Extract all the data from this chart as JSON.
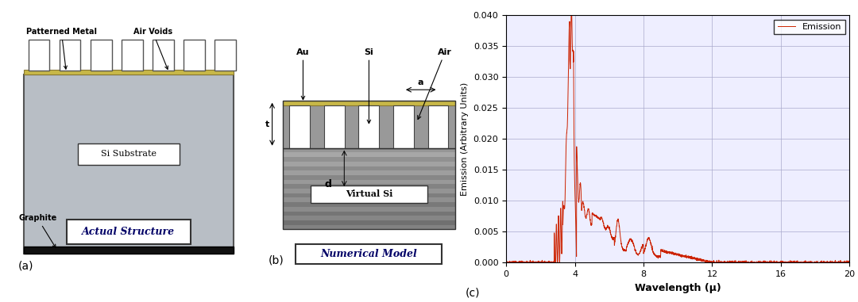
{
  "fig_width": 10.8,
  "fig_height": 3.81,
  "bg_color": "#ffffff",
  "panel_a": {
    "label": "(a)",
    "substrate_color": "#b8bec5",
    "substrate_border": "#555555",
    "metal_color": "#c8b848",
    "pillar_fill": "#ffffff",
    "pillar_border": "#555555",
    "graphite_color": "#111111",
    "box_label1": "Si Substrate",
    "box_label2": "Actual Structure",
    "annot_patterned": "Patterned Metal",
    "annot_airvoids": "Air Voids",
    "annot_graphite": "Graphite"
  },
  "panel_b": {
    "label": "(b)",
    "metal_color": "#c8b848",
    "pillar_fill": "#ffffff",
    "pillar_border": "#555555",
    "si_fill": "#aaaaaa",
    "box_label": "Virtual Si",
    "box_label2": "Numerical Model",
    "annot_au": "Au",
    "annot_si": "Si",
    "annot_air": "Air",
    "annot_t": "t",
    "annot_a": "a",
    "annot_d": "d"
  },
  "panel_c": {
    "label": "(c)",
    "xlabel": "Wavelength (μ)",
    "ylabel": "Emission (Arbitrary Units)",
    "legend_label": "Emission",
    "line_color": "#cc2200",
    "xlim": [
      0,
      20
    ],
    "ylim": [
      0,
      0.04
    ],
    "xticks": [
      0,
      4,
      8,
      12,
      16,
      20
    ],
    "yticks": [
      0,
      0.005,
      0.01,
      0.015,
      0.02,
      0.025,
      0.03,
      0.035,
      0.04
    ],
    "grid_color": "#aaaacc",
    "bg_color": "#eeeeff"
  }
}
